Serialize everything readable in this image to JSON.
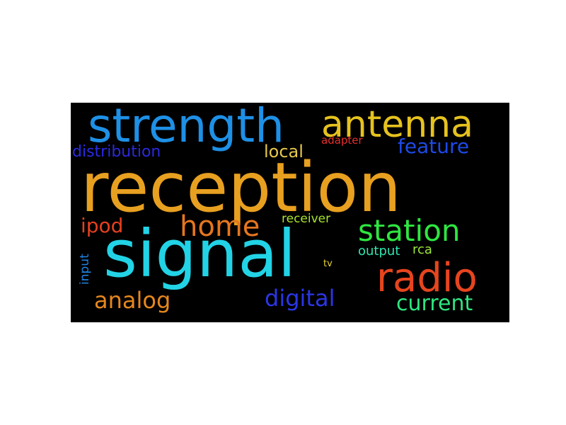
{
  "words": [
    {
      "text": "reception",
      "color": "#e8a020"
    },
    {
      "text": "signal",
      "color": "#22d3e6"
    },
    {
      "text": "strength",
      "color": "#1e90e6"
    },
    {
      "text": "antenna",
      "color": "#e6c21e"
    },
    {
      "text": "radio",
      "color": "#e6451e"
    },
    {
      "text": "station",
      "color": "#2ee640"
    },
    {
      "text": "home",
      "color": "#e6761e"
    },
    {
      "text": "distribution",
      "color": "#2a2ae0"
    },
    {
      "text": "feature",
      "color": "#1e4ae6"
    },
    {
      "text": "local",
      "color": "#e6c84a"
    },
    {
      "text": "analog",
      "color": "#e6861e"
    },
    {
      "text": "digital",
      "color": "#2a36e6"
    },
    {
      "text": "current",
      "color": "#2ee680"
    },
    {
      "text": "ipod",
      "color": "#e6401e"
    },
    {
      "text": "receiver",
      "color": "#a8e62e"
    },
    {
      "text": "output",
      "color": "#2ee6b0"
    },
    {
      "text": "rca",
      "color": "#9ee63a"
    },
    {
      "text": "tv",
      "color": "#e6d42e"
    },
    {
      "text": "adapter",
      "color": "#e62e2e"
    },
    {
      "text": "input",
      "color": "#1e86e6"
    }
  ]
}
